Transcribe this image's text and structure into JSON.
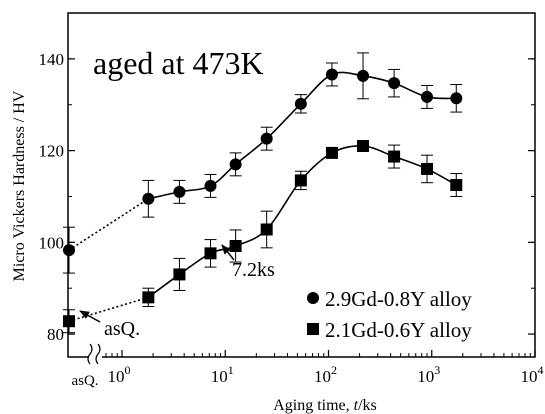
{
  "chart_data": {
    "type": "line",
    "annotation_title": "aged at 473K",
    "xlabel_main": "Aging time, ",
    "xlabel_var": "t",
    "xlabel_unit": "/ks",
    "ylabel": "Micro Vickers Hardness / HV",
    "x_scale": "log",
    "xlim": [
      0.3,
      10000
    ],
    "ylim": [
      75,
      150
    ],
    "grid": false,
    "legend_position": "bottom-right",
    "x_ticks": [
      {
        "value": 1,
        "base": "10",
        "exp": "0"
      },
      {
        "value": 10,
        "base": "10",
        "exp": "1"
      },
      {
        "value": 100,
        "base": "10",
        "exp": "2"
      },
      {
        "value": 1000,
        "base": "10",
        "exp": "3"
      },
      {
        "value": 10000,
        "base": "10",
        "exp": "4"
      }
    ],
    "x_asq_tick_label": "asQ.",
    "y_ticks": [
      80,
      100,
      120,
      140
    ],
    "series": [
      {
        "name": "2.9Gd-0.8Y alloy",
        "marker": "circle",
        "asq_value": 98.3,
        "asq_err": 5,
        "x": [
          1.8,
          3.6,
          7.2,
          12.6,
          25.2,
          54,
          108,
          216,
          432,
          900,
          1728
        ],
        "y": [
          109.5,
          111,
          112.3,
          117,
          122.6,
          130.2,
          136.6,
          136.3,
          134.7,
          131.7,
          131.4
        ],
        "err": [
          4,
          2.5,
          2.5,
          2.5,
          2.5,
          2,
          2.5,
          5,
          3,
          2.5,
          3
        ]
      },
      {
        "name": "2.1Gd-0.6Y alloy",
        "marker": "square",
        "asq_value": 82.8,
        "asq_err": 2.5,
        "x": [
          1.8,
          3.6,
          7.2,
          12.6,
          25.2,
          54,
          108,
          216,
          432,
          900,
          1728
        ],
        "y": [
          88,
          93,
          97.6,
          99.2,
          102.8,
          113.5,
          119.5,
          121,
          118.7,
          116,
          112.5
        ],
        "err": [
          2,
          3.5,
          3,
          3.5,
          4,
          2,
          1,
          1,
          2.5,
          3,
          2.5
        ]
      }
    ],
    "annotations": [
      {
        "text": "7.2ks",
        "x": 7.2,
        "y": 97.6
      },
      {
        "text": "asQ.",
        "x": "asQ.",
        "y": 82.8
      }
    ]
  }
}
